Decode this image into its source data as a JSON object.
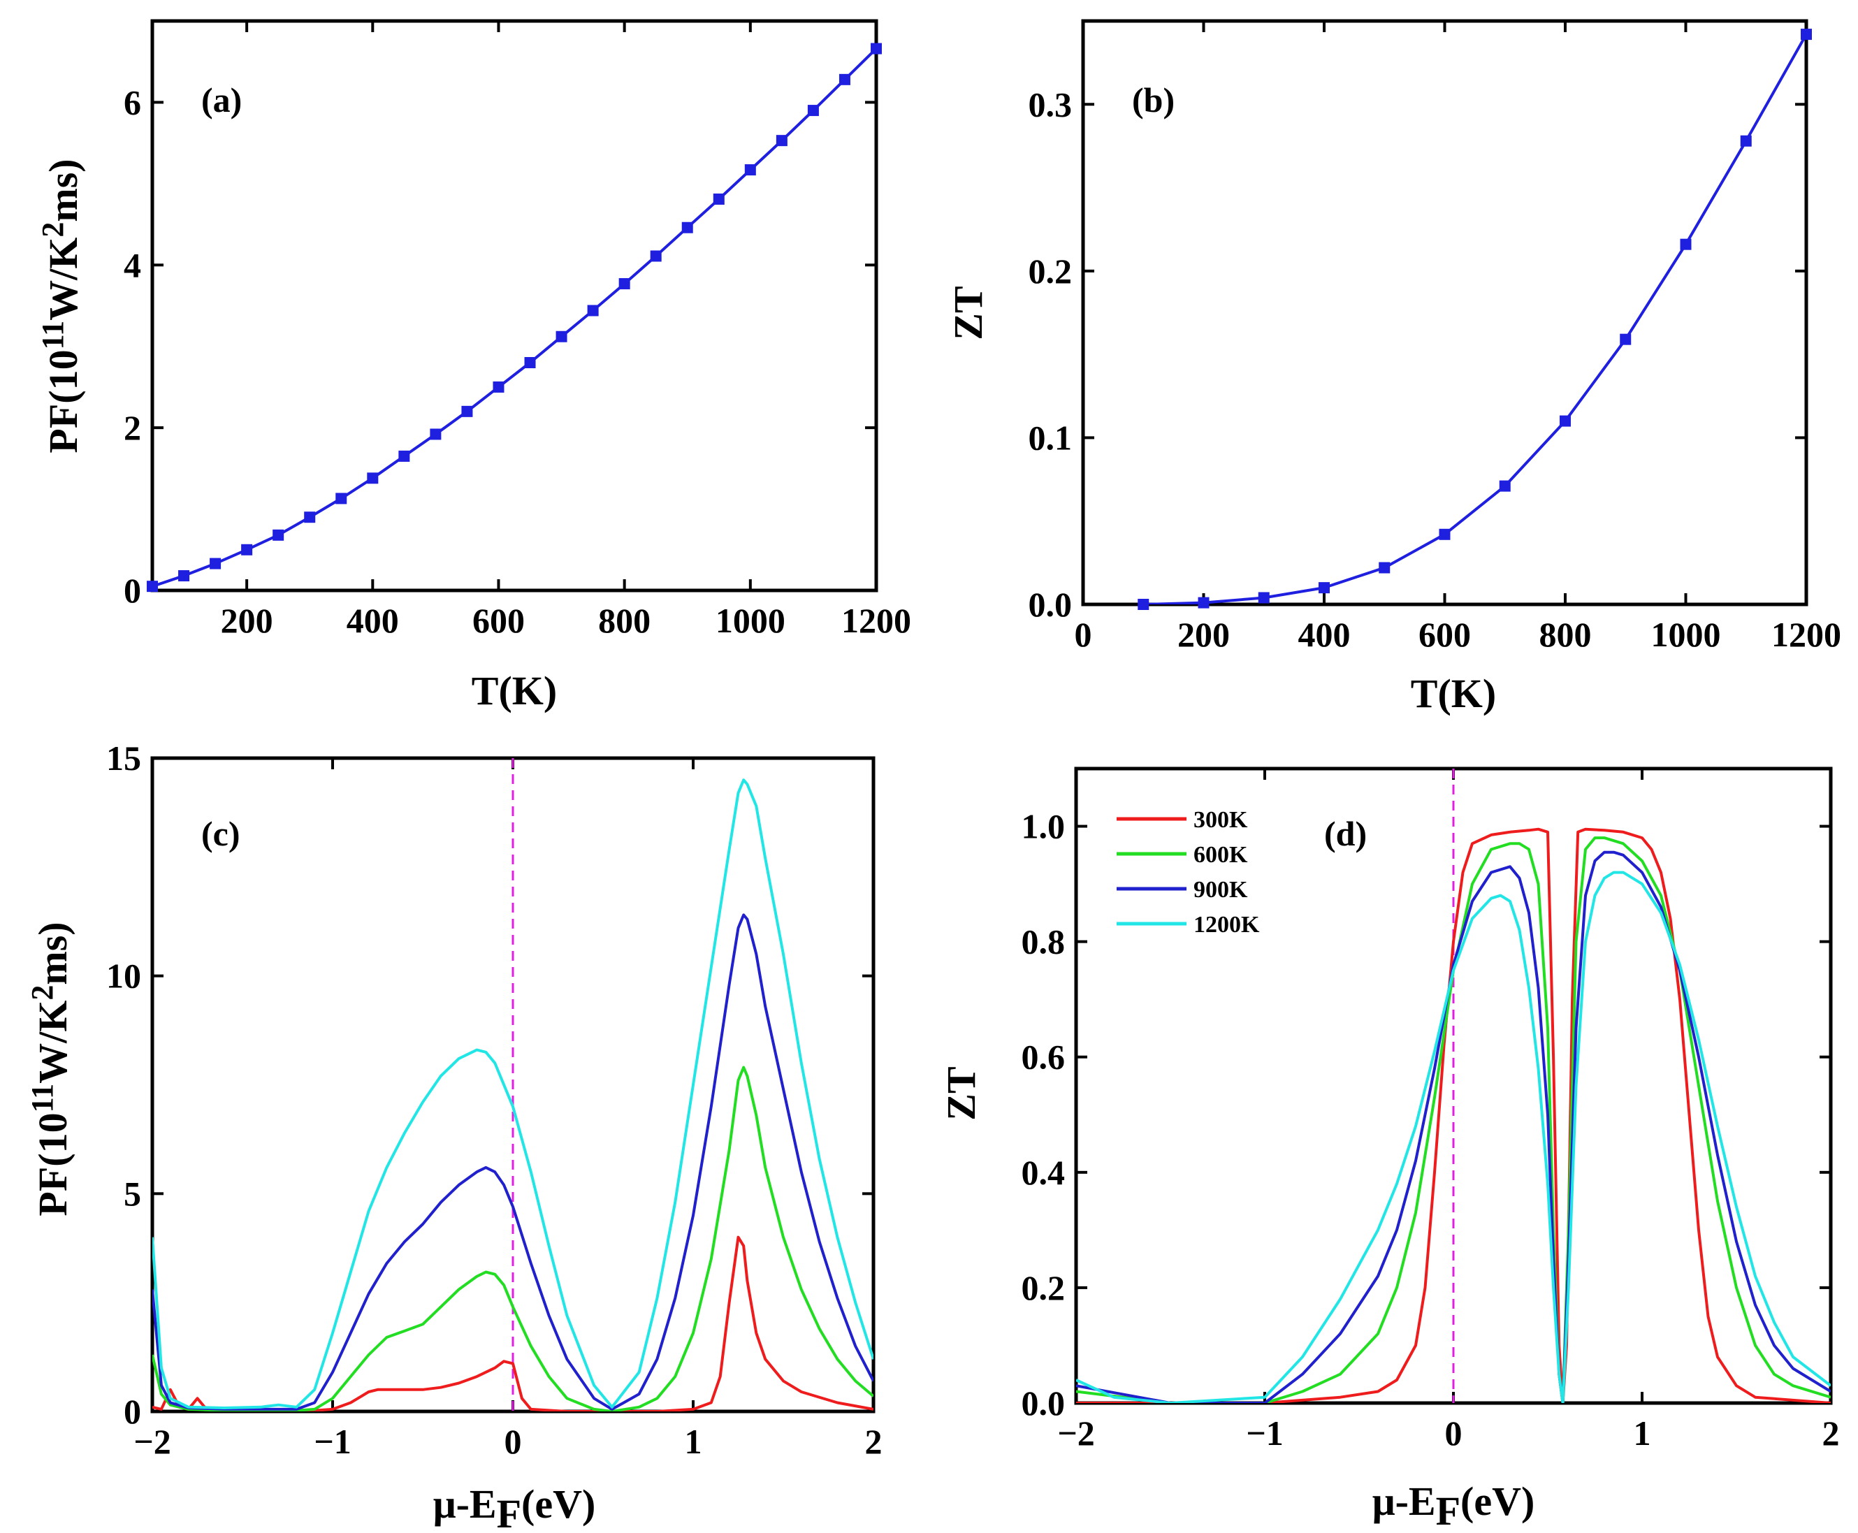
{
  "figure": {
    "panels": [
      "(a)",
      "(b)",
      "(c)",
      "(d)"
    ]
  },
  "chart_data": [
    {
      "id": "a",
      "type": "line",
      "panel_label": "(a)",
      "title": "",
      "xlabel": "T(K)",
      "ylabel": "PF(10¹¹W/K²ms)",
      "ylabel_parts": [
        "PF(10",
        "11",
        "W/K",
        "2",
        "ms)"
      ],
      "xlim": [
        50,
        1200
      ],
      "ylim": [
        0,
        7
      ],
      "xticks": [
        200,
        400,
        600,
        800,
        1000,
        1200
      ],
      "yticks": [
        0,
        2,
        4,
        6
      ],
      "grid": false,
      "series": [
        {
          "name": "PF",
          "color": "#1f1fe0",
          "marker": "square",
          "x": [
            50,
            100,
            150,
            200,
            250,
            300,
            350,
            400,
            450,
            500,
            550,
            600,
            650,
            700,
            750,
            800,
            850,
            900,
            950,
            1000,
            1050,
            1100,
            1150,
            1200
          ],
          "y": [
            0.05,
            0.18,
            0.33,
            0.5,
            0.68,
            0.9,
            1.13,
            1.38,
            1.65,
            1.92,
            2.2,
            2.5,
            2.8,
            3.12,
            3.44,
            3.77,
            4.11,
            4.46,
            4.81,
            5.17,
            5.53,
            5.9,
            6.28,
            6.66
          ]
        }
      ]
    },
    {
      "id": "b",
      "type": "line",
      "panel_label": "(b)",
      "title": "",
      "xlabel": "T(K)",
      "ylabel": "ZT",
      "xlim": [
        0,
        1200
      ],
      "ylim": [
        0,
        0.35
      ],
      "xticks": [
        0,
        200,
        400,
        600,
        800,
        1000,
        1200
      ],
      "yticks": [
        0.0,
        0.1,
        0.2,
        0.3
      ],
      "ytick_labels": [
        "0.0",
        "0.1",
        "0.2",
        "0.3"
      ],
      "grid": false,
      "series": [
        {
          "name": "ZT",
          "color": "#1f1fe0",
          "marker": "square",
          "x": [
            100,
            200,
            300,
            400,
            500,
            600,
            700,
            800,
            900,
            1000,
            1100,
            1200
          ],
          "y": [
            0.0,
            0.001,
            0.004,
            0.01,
            0.022,
            0.042,
            0.071,
            0.11,
            0.159,
            0.216,
            0.278,
            0.342
          ]
        }
      ]
    },
    {
      "id": "c",
      "type": "line",
      "panel_label": "(c)",
      "title": "",
      "xlabel": "μ-EF(eV)",
      "xlabel_parts": [
        "μ-E",
        "F",
        "(eV)"
      ],
      "ylabel": "PF(10¹¹W/K²ms)",
      "ylabel_parts": [
        "PF(10",
        "11",
        "W/K",
        "2",
        "ms)"
      ],
      "xlim": [
        -2,
        2
      ],
      "ylim": [
        0,
        15
      ],
      "xticks": [
        -2,
        -1,
        0,
        1,
        2
      ],
      "yticks": [
        0,
        5,
        10,
        15
      ],
      "grid": false,
      "fermi_line": {
        "x": 0,
        "color": "#e020e0"
      },
      "series": [
        {
          "name": "300K",
          "color": "#ee1c1c",
          "x": [
            -2.0,
            -1.95,
            -1.9,
            -1.85,
            -1.8,
            -1.75,
            -1.7,
            -1.6,
            -1.4,
            -1.2,
            -1.1,
            -1.0,
            -0.9,
            -0.8,
            -0.75,
            -0.6,
            -0.5,
            -0.4,
            -0.3,
            -0.2,
            -0.1,
            -0.05,
            0.0,
            0.05,
            0.1,
            0.3,
            0.5,
            0.8,
            1.0,
            1.1,
            1.15,
            1.2,
            1.25,
            1.28,
            1.3,
            1.35,
            1.4,
            1.5,
            1.6,
            1.8,
            2.0
          ],
          "y": [
            0.1,
            0.05,
            0.5,
            0.1,
            0.05,
            0.3,
            0.05,
            0.02,
            0.02,
            0.02,
            0.02,
            0.05,
            0.2,
            0.45,
            0.5,
            0.5,
            0.5,
            0.55,
            0.65,
            0.8,
            1.0,
            1.15,
            1.1,
            0.3,
            0.05,
            0.0,
            0.0,
            0.0,
            0.05,
            0.2,
            0.8,
            2.5,
            4.0,
            3.8,
            3.0,
            1.8,
            1.2,
            0.7,
            0.45,
            0.2,
            0.05
          ]
        },
        {
          "name": "600K",
          "color": "#22dd22",
          "x": [
            -2.0,
            -1.95,
            -1.9,
            -1.8,
            -1.6,
            -1.4,
            -1.2,
            -1.1,
            -1.0,
            -0.9,
            -0.8,
            -0.7,
            -0.6,
            -0.5,
            -0.4,
            -0.3,
            -0.2,
            -0.15,
            -0.1,
            -0.05,
            0.0,
            0.1,
            0.2,
            0.3,
            0.45,
            0.55,
            0.7,
            0.8,
            0.9,
            1.0,
            1.1,
            1.2,
            1.25,
            1.28,
            1.3,
            1.35,
            1.4,
            1.5,
            1.6,
            1.7,
            1.8,
            1.9,
            2.0
          ],
          "y": [
            1.3,
            0.4,
            0.15,
            0.05,
            0.02,
            0.02,
            0.02,
            0.05,
            0.3,
            0.8,
            1.3,
            1.7,
            1.85,
            2.0,
            2.4,
            2.8,
            3.1,
            3.2,
            3.15,
            2.9,
            2.4,
            1.5,
            0.8,
            0.3,
            0.05,
            0.0,
            0.1,
            0.3,
            0.8,
            1.8,
            3.5,
            6.0,
            7.6,
            7.9,
            7.7,
            6.8,
            5.6,
            4.0,
            2.8,
            1.9,
            1.2,
            0.7,
            0.35
          ]
        },
        {
          "name": "900K",
          "color": "#2020cc",
          "x": [
            -2.0,
            -1.95,
            -1.9,
            -1.8,
            -1.6,
            -1.4,
            -1.2,
            -1.1,
            -1.0,
            -0.9,
            -0.8,
            -0.7,
            -0.6,
            -0.5,
            -0.4,
            -0.3,
            -0.2,
            -0.15,
            -0.1,
            -0.05,
            0.0,
            0.1,
            0.2,
            0.3,
            0.45,
            0.55,
            0.7,
            0.8,
            0.9,
            1.0,
            1.1,
            1.2,
            1.25,
            1.28,
            1.3,
            1.35,
            1.4,
            1.5,
            1.6,
            1.7,
            1.8,
            1.9,
            2.0
          ],
          "y": [
            2.8,
            0.6,
            0.2,
            0.08,
            0.05,
            0.05,
            0.05,
            0.2,
            0.9,
            1.8,
            2.7,
            3.4,
            3.9,
            4.3,
            4.8,
            5.2,
            5.5,
            5.6,
            5.5,
            5.2,
            4.7,
            3.4,
            2.2,
            1.2,
            0.3,
            0.05,
            0.4,
            1.2,
            2.6,
            4.5,
            7.0,
            9.8,
            11.1,
            11.4,
            11.3,
            10.5,
            9.3,
            7.4,
            5.5,
            3.9,
            2.6,
            1.5,
            0.7
          ]
        },
        {
          "name": "1200K",
          "color": "#22e6e6",
          "x": [
            -2.0,
            -1.95,
            -1.9,
            -1.8,
            -1.6,
            -1.4,
            -1.3,
            -1.2,
            -1.1,
            -1.0,
            -0.9,
            -0.8,
            -0.7,
            -0.6,
            -0.5,
            -0.4,
            -0.3,
            -0.2,
            -0.15,
            -0.1,
            0.0,
            0.1,
            0.2,
            0.3,
            0.45,
            0.55,
            0.7,
            0.8,
            0.9,
            1.0,
            1.1,
            1.2,
            1.25,
            1.28,
            1.3,
            1.35,
            1.4,
            1.5,
            1.6,
            1.7,
            1.8,
            1.9,
            2.0
          ],
          "y": [
            4.0,
            1.0,
            0.3,
            0.1,
            0.08,
            0.1,
            0.15,
            0.1,
            0.5,
            1.8,
            3.2,
            4.6,
            5.6,
            6.4,
            7.1,
            7.7,
            8.1,
            8.3,
            8.25,
            8.0,
            7.0,
            5.5,
            3.8,
            2.2,
            0.6,
            0.1,
            0.9,
            2.6,
            4.8,
            7.5,
            10.2,
            12.9,
            14.2,
            14.5,
            14.4,
            13.9,
            12.7,
            10.5,
            8.0,
            5.8,
            4.0,
            2.5,
            1.2
          ]
        }
      ]
    },
    {
      "id": "d",
      "type": "line",
      "panel_label": "(d)",
      "title": "",
      "xlabel": "μ-EF(eV)",
      "xlabel_parts": [
        "μ-E",
        "F",
        "(eV)"
      ],
      "ylabel": "ZT",
      "xlim": [
        -2,
        2
      ],
      "ylim": [
        0,
        1.1
      ],
      "xticks": [
        -2,
        -1,
        0,
        1,
        2
      ],
      "yticks": [
        0.0,
        0.2,
        0.4,
        0.6,
        0.8,
        1.0
      ],
      "ytick_labels": [
        "0.0",
        "0.2",
        "0.4",
        "0.6",
        "0.8",
        "1.0"
      ],
      "grid": false,
      "legend_position": "top-left",
      "fermi_line": {
        "x": 0,
        "color": "#e020e0"
      },
      "series": [
        {
          "name": "300K",
          "color": "#ee1c1c",
          "x": [
            -2.0,
            -1.5,
            -1.0,
            -0.6,
            -0.4,
            -0.3,
            -0.2,
            -0.15,
            -0.1,
            -0.05,
            0.0,
            0.05,
            0.1,
            0.2,
            0.3,
            0.4,
            0.45,
            0.5,
            0.53,
            0.56,
            0.58,
            0.6,
            0.63,
            0.66,
            0.7,
            0.8,
            0.9,
            1.0,
            1.05,
            1.1,
            1.15,
            1.2,
            1.25,
            1.3,
            1.35,
            1.4,
            1.5,
            1.6,
            2.0
          ],
          "y": [
            0.0,
            0.0,
            0.0,
            0.01,
            0.02,
            0.04,
            0.1,
            0.2,
            0.4,
            0.62,
            0.8,
            0.92,
            0.97,
            0.985,
            0.99,
            0.993,
            0.995,
            0.99,
            0.6,
            0.1,
            0.0,
            0.1,
            0.7,
            0.99,
            0.995,
            0.993,
            0.99,
            0.98,
            0.96,
            0.92,
            0.84,
            0.7,
            0.5,
            0.3,
            0.15,
            0.08,
            0.03,
            0.01,
            0.0
          ]
        },
        {
          "name": "600K",
          "color": "#22dd22",
          "x": [
            -2.0,
            -1.5,
            -1.0,
            -0.8,
            -0.6,
            -0.4,
            -0.3,
            -0.2,
            -0.1,
            0.0,
            0.1,
            0.2,
            0.3,
            0.35,
            0.4,
            0.45,
            0.5,
            0.53,
            0.56,
            0.58,
            0.61,
            0.65,
            0.7,
            0.75,
            0.8,
            0.9,
            1.0,
            1.1,
            1.2,
            1.3,
            1.4,
            1.5,
            1.6,
            1.7,
            1.8,
            2.0
          ],
          "y": [
            0.02,
            0.0,
            0.0,
            0.02,
            0.05,
            0.12,
            0.2,
            0.33,
            0.53,
            0.75,
            0.9,
            0.96,
            0.97,
            0.97,
            0.96,
            0.9,
            0.65,
            0.3,
            0.05,
            0.0,
            0.3,
            0.8,
            0.96,
            0.98,
            0.98,
            0.97,
            0.94,
            0.88,
            0.75,
            0.55,
            0.35,
            0.2,
            0.1,
            0.05,
            0.03,
            0.01
          ]
        },
        {
          "name": "900K",
          "color": "#2020cc",
          "x": [
            -2.0,
            -1.5,
            -1.0,
            -0.8,
            -0.6,
            -0.4,
            -0.3,
            -0.2,
            -0.1,
            0.0,
            0.1,
            0.2,
            0.3,
            0.35,
            0.4,
            0.45,
            0.5,
            0.53,
            0.56,
            0.58,
            0.61,
            0.65,
            0.7,
            0.75,
            0.8,
            0.85,
            0.9,
            1.0,
            1.1,
            1.2,
            1.3,
            1.4,
            1.5,
            1.6,
            1.7,
            1.8,
            2.0
          ],
          "y": [
            0.03,
            0.0,
            0.0,
            0.05,
            0.12,
            0.22,
            0.3,
            0.42,
            0.58,
            0.76,
            0.87,
            0.92,
            0.93,
            0.91,
            0.85,
            0.72,
            0.5,
            0.25,
            0.05,
            0.0,
            0.25,
            0.65,
            0.88,
            0.94,
            0.955,
            0.955,
            0.95,
            0.92,
            0.86,
            0.75,
            0.6,
            0.43,
            0.28,
            0.17,
            0.1,
            0.06,
            0.02
          ]
        },
        {
          "name": "1200K",
          "color": "#22e6e6",
          "x": [
            -2.0,
            -1.8,
            -1.5,
            -1.0,
            -0.8,
            -0.6,
            -0.4,
            -0.3,
            -0.2,
            -0.1,
            0.0,
            0.1,
            0.2,
            0.25,
            0.3,
            0.35,
            0.4,
            0.45,
            0.5,
            0.53,
            0.56,
            0.58,
            0.61,
            0.65,
            0.7,
            0.75,
            0.8,
            0.85,
            0.9,
            1.0,
            1.1,
            1.2,
            1.3,
            1.4,
            1.5,
            1.6,
            1.7,
            1.8,
            2.0
          ],
          "y": [
            0.04,
            0.01,
            0.0,
            0.01,
            0.08,
            0.18,
            0.3,
            0.38,
            0.48,
            0.61,
            0.75,
            0.84,
            0.875,
            0.88,
            0.87,
            0.82,
            0.72,
            0.58,
            0.38,
            0.2,
            0.05,
            0.0,
            0.2,
            0.55,
            0.8,
            0.88,
            0.91,
            0.92,
            0.92,
            0.9,
            0.85,
            0.76,
            0.63,
            0.48,
            0.34,
            0.22,
            0.14,
            0.08,
            0.03
          ]
        }
      ]
    }
  ]
}
